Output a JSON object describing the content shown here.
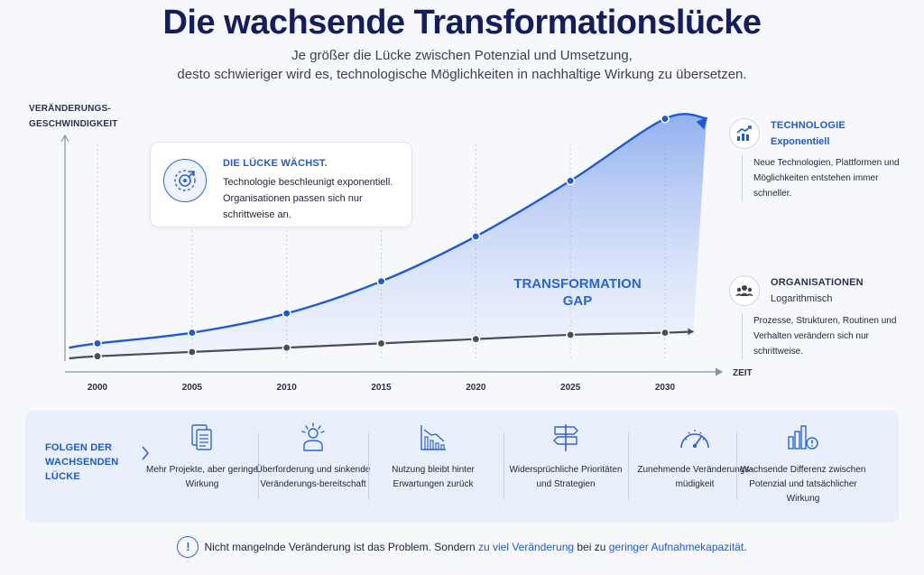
{
  "header": {
    "title": "Die wachsende Transformationslücke",
    "subtitle_line1": "Je größer die Lücke zwischen Potenzial und Umsetzung,",
    "subtitle_line2": "desto schwieriger wird es, technologische Möglichkeiten in nachhaltige Wirkung zu übersetzen."
  },
  "chart_data": {
    "type": "line",
    "ylabel_line1": "VERÄNDERUNGS-",
    "ylabel_line2": "GESCHWINDIGKEIT",
    "xlabel": "ZEIT",
    "x": [
      2000,
      2005,
      2010,
      2015,
      2020,
      2025,
      2030
    ],
    "xlim": [
      1998,
      2032
    ],
    "ylim": [
      0,
      100
    ],
    "grid": "vertical dashed",
    "series": [
      {
        "name": "TECHNOLOGIE",
        "values": [
          7,
          12,
          21,
          36,
          57,
          83,
          112
        ],
        "color": "#1f59d6"
      },
      {
        "name": "ORGANISATIONEN",
        "values": [
          1,
          3,
          5,
          7,
          9,
          11,
          12
        ],
        "color": "#4a4e5a"
      }
    ],
    "gap_label_line1": "TRANSFORMATION",
    "gap_label_line2": "GAP"
  },
  "callout": {
    "icon": "target-acceleration-icon",
    "title": "DIE LÜCKE WÄCHST.",
    "text": "Technologie beschleunigt exponentiell. Organisationen passen sich nur schrittweise an."
  },
  "legend": {
    "technology": {
      "icon": "trend-up-chart-icon",
      "title": "TECHNOLOGIE",
      "subtitle": "Exponentiell",
      "text": "Neue Technologien, Plattformen und Möglichkeiten entstehen immer schneller."
    },
    "organisations": {
      "icon": "people-group-icon",
      "title": "ORGANISATIONEN",
      "subtitle": "Logarithmisch",
      "text": "Prozesse, Strukturen, Routinen und Verhalten verändern sich nur schrittweise."
    }
  },
  "consequences": {
    "heading_line1": "FOLGEN DER",
    "heading_line2": "WACHSENDEN",
    "heading_line3": "LÜCKE",
    "items": [
      {
        "icon": "documents-icon",
        "text": "Mehr Projekte, aber geringe Wirkung"
      },
      {
        "icon": "overwhelmed-person-icon",
        "text": "Überforderung und sinkende Veränderungs-bereitschaft"
      },
      {
        "icon": "declining-bars-icon",
        "text": "Nutzung bleibt hinter Erwartungen zurück"
      },
      {
        "icon": "signpost-icon",
        "text": "Widersprüchliche Prioritäten und Strategien"
      },
      {
        "icon": "gauge-icon",
        "text": "Zunehmende Veränderungs-müdigkeit"
      },
      {
        "icon": "bars-alert-icon",
        "text": "Wachsende Differenz zwischen Potenzial und tatsächlicher Wirkung"
      }
    ]
  },
  "footer": {
    "icon": "exclamation-icon",
    "text_a": "Nicht mangelnde Veränderung ist das Problem. Sondern ",
    "highlight_a": "zu viel Veränderung",
    "text_b": " bei zu ",
    "highlight_b": "geringer Aufnahmekapazität",
    "text_c": "."
  }
}
